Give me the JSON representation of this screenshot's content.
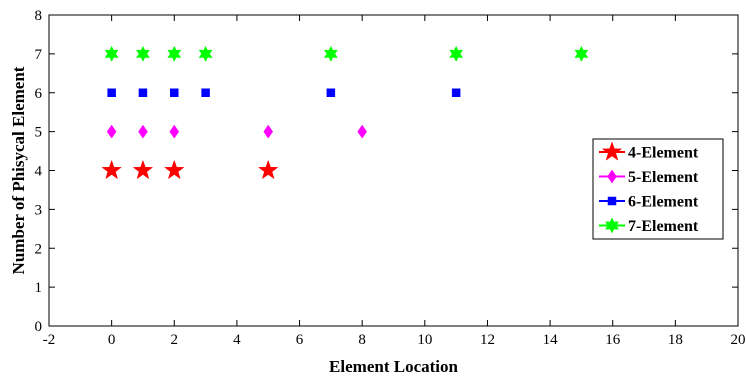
{
  "chart_data": {
    "type": "scatter",
    "xlabel": "Element Location",
    "ylabel": "Number of Phisycal Element",
    "xlim": [
      -2,
      20
    ],
    "ylim": [
      0,
      8
    ],
    "xticks": [
      -2,
      0,
      2,
      4,
      6,
      8,
      10,
      12,
      14,
      16,
      18,
      20
    ],
    "yticks": [
      0,
      1,
      2,
      3,
      4,
      5,
      6,
      7,
      8
    ],
    "grid": false,
    "legend_position": "right",
    "series": [
      {
        "name": "4-Element",
        "marker": "star",
        "color": "#ff0000",
        "x": [
          0,
          1,
          2,
          5
        ],
        "y": [
          4,
          4,
          4,
          4
        ]
      },
      {
        "name": "5-Element",
        "marker": "diamond",
        "color": "#ff00ff",
        "x": [
          0,
          1,
          2,
          5,
          8
        ],
        "y": [
          5,
          5,
          5,
          5,
          5
        ]
      },
      {
        "name": "6-Element",
        "marker": "square",
        "color": "#0000ff",
        "x": [
          0,
          1,
          2,
          3,
          7,
          11
        ],
        "y": [
          6,
          6,
          6,
          6,
          6,
          6
        ]
      },
      {
        "name": "7-Element",
        "marker": "hexagram",
        "color": "#00ff00",
        "x": [
          0,
          1,
          2,
          3,
          7,
          11,
          15
        ],
        "y": [
          7,
          7,
          7,
          7,
          7,
          7,
          7
        ]
      }
    ]
  }
}
